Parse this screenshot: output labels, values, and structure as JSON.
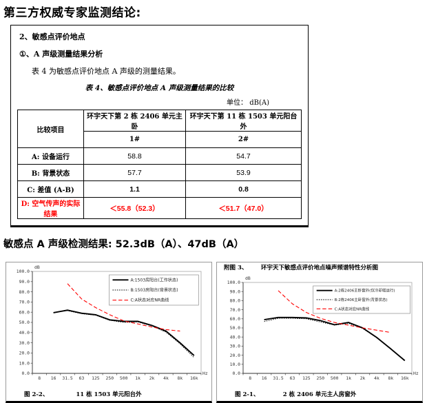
{
  "page": {
    "title": "第三方权威专家监测结论:",
    "summary": "敏感点 A 声级检测结果: 52.3dB（A）、47dB（A）"
  },
  "report": {
    "section_heading": "2、敏感点评价地点",
    "subsection_heading": "①、A 声级测量结果分析",
    "intro_text": "表 4 为敏感点评价地点 A 声级的测量结果。",
    "table_title": "表 4、敏感点评价地点 A 声级测量结果的比较",
    "unit_label": "单位： dB(A)",
    "table": {
      "corner_label": "比较项目",
      "columns": [
        {
          "location": "环宇天下第 2 栋 2406 单元主卧",
          "code": "1#"
        },
        {
          "location": "环宇天下第 11 栋 1503 单元阳台外",
          "code": "2#"
        }
      ],
      "rows": [
        {
          "label": "A: 设备运行",
          "values": [
            "58.8",
            "54.7"
          ]
        },
        {
          "label": "B: 背景状态",
          "values": [
            "57.7",
            "53.9"
          ]
        },
        {
          "label": "C: 差值 (A-B)",
          "values": [
            "1.1",
            "0.8"
          ]
        },
        {
          "label": "D: 空气传声的实际结果",
          "values": [
            "＜55.8（52.3）",
            "＜51.7（47.0）"
          ]
        }
      ]
    }
  },
  "colors": {
    "accent_red": "#FF0000",
    "line_black": "#000000"
  },
  "chart_data": [
    {
      "type": "line",
      "caption_label": "图 2-2、",
      "caption": "11 栋 1503 单元阳台外",
      "ylabel": "dB",
      "xlabel": "Hz",
      "ylim": [
        0,
        100
      ],
      "ytick_step": 10,
      "grid": false,
      "legend_position": "inside-top-right",
      "categories": [
        "8",
        "16",
        "31.5",
        "63",
        "125",
        "250",
        "500",
        "1k",
        "2k",
        "4k",
        "8k",
        "16k"
      ],
      "series": [
        {
          "name": "A:1503房阳台(工作状态)",
          "style": "solid",
          "color": "#000000",
          "values": [
            null,
            59.5,
            62.0,
            59.0,
            57.5,
            52.5,
            51.0,
            51.0,
            47.0,
            41.5,
            30.0,
            17.5
          ]
        },
        {
          "name": "B:1503房阳台(背景状态)",
          "style": "dotted",
          "color": "#000000",
          "values": [
            null,
            59.5,
            61.5,
            58.5,
            57.0,
            52.0,
            50.0,
            50.5,
            46.5,
            40.5,
            29.0,
            15.5
          ]
        },
        {
          "name": "C:A状态对应NR曲线",
          "style": "dashed",
          "color": "#FF0000",
          "values": [
            null,
            null,
            88.0,
            73.0,
            64.5,
            57.5,
            51.5,
            48.5,
            45.5,
            43.0,
            41.5,
            null
          ]
        }
      ]
    },
    {
      "type": "line",
      "header_label": "附图 3、",
      "header_title": "环宇天下敏感点评价地点噪声频谱特性分析图",
      "caption_label": "图 2-1、",
      "caption": "2 栋 2406 单元主人房窗外",
      "ylabel": "dB",
      "xlabel": "Hz",
      "ylim": [
        0,
        100
      ],
      "ytick_step": 10,
      "grid": false,
      "legend_position": "inside-top-right",
      "categories": [
        "8",
        "16",
        "31.5",
        "63",
        "125",
        "250",
        "500",
        "1k",
        "2k",
        "4k",
        "8k",
        "16k"
      ],
      "series": [
        {
          "name": "A:2栋2406主卧窗外(仅冷却塔运行)",
          "style": "solid",
          "color": "#000000",
          "values": [
            null,
            59.0,
            61.5,
            61.5,
            61.0,
            58.0,
            53.5,
            56.0,
            50.0,
            39.5,
            27.0,
            14.0
          ]
        },
        {
          "name": "B:2栋2406主卧窗外(背景状态)",
          "style": "dotted",
          "color": "#000000",
          "values": [
            null,
            57.0,
            60.5,
            60.5,
            60.0,
            56.5,
            53.0,
            55.0,
            49.5,
            39.0,
            27.0,
            14.0
          ]
        },
        {
          "name": "C:A状态对应NR曲线",
          "style": "dashed",
          "color": "#FF0000",
          "values": [
            null,
            null,
            91.0,
            76.5,
            67.0,
            60.5,
            56.0,
            53.0,
            50.0,
            47.5,
            45.0,
            null
          ]
        }
      ]
    }
  ]
}
